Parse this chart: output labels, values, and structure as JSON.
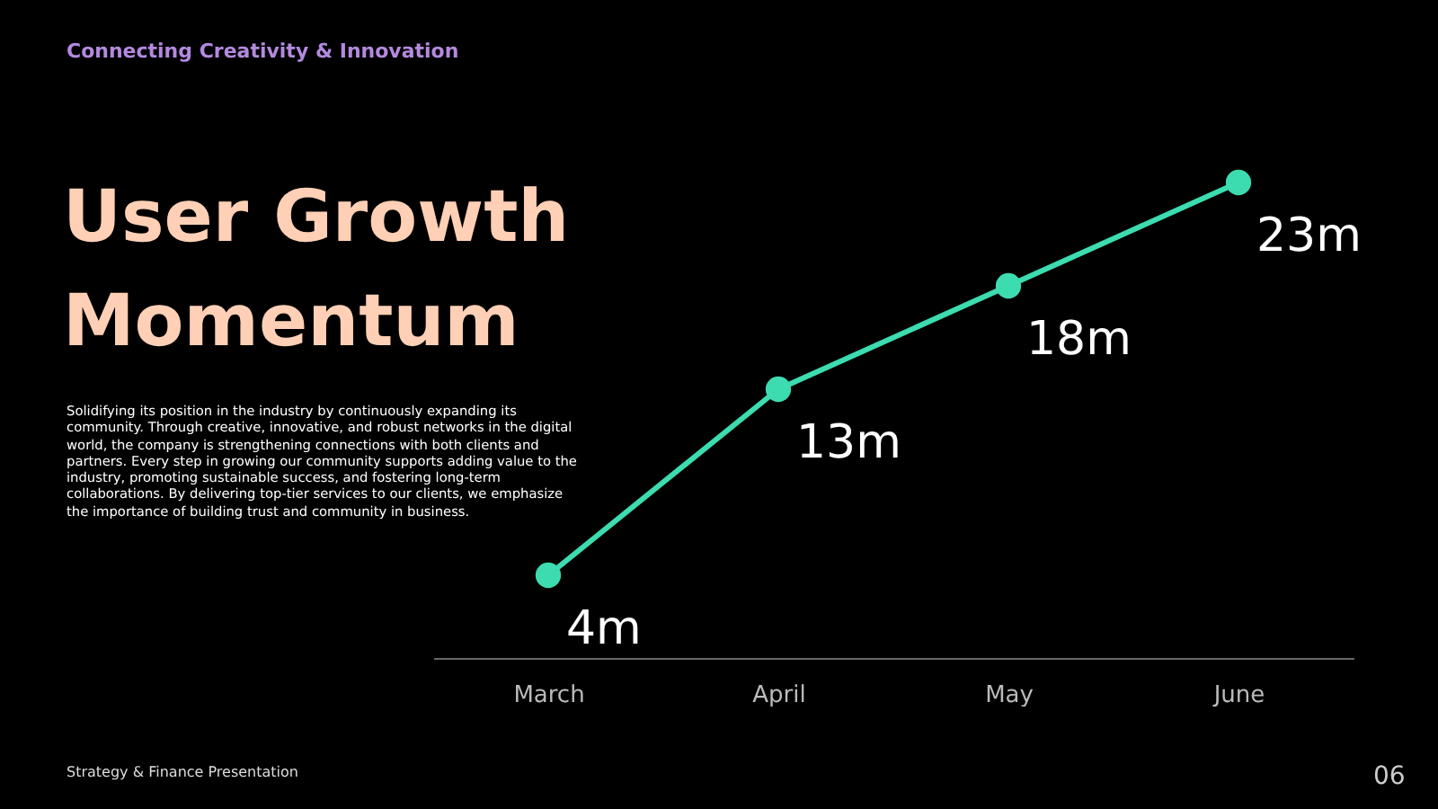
{
  "chart_data": {
    "type": "line",
    "title": "User Growth Momentum",
    "subtitle": "Connecting Creativity & Innovation",
    "annotations": [
      "Solidifying its position in the industry by continuously expanding its community. Through creative, innovative, and robust networks in the digital world, the company is strengthening connections with both clients and partners. Every step in growing our community supports adding value to the industry, promoting sustainable success, and fostering long-term collaborations. By delivering top-tier services to our clients, we emphasize the importance of building trust and community in business.",
      "Strategy & Finance Presentation",
      "06"
    ],
    "categories": [
      "March",
      "April",
      "May",
      "June"
    ],
    "series": [
      {
        "color": "#3ddbb0",
        "values": [
          4,
          13,
          18,
          23
        ],
        "value_labels": [
          "4m",
          "13m",
          "18m",
          "23m"
        ]
      }
    ],
    "marker": "circle",
    "grid": false,
    "tick_labels": "x"
  }
}
